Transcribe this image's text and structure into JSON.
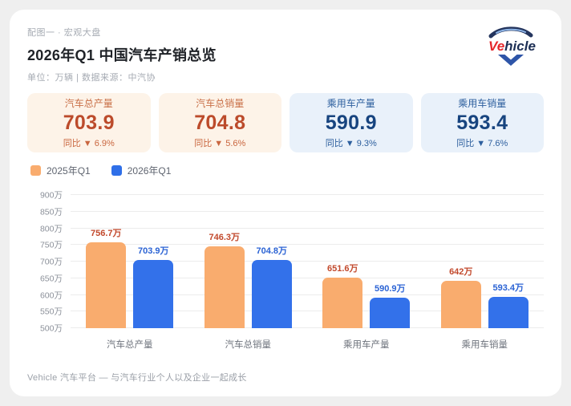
{
  "page": {
    "eyebrow": "配图一 · 宏观大盘",
    "title": "2026年Q1 中国汽车产销总览",
    "subtitle": "单位：万辆 | 数据来源：中汽协",
    "footer": "Vehicle 汽车平台 — 与汽车行业个人以及企业一起成长"
  },
  "logo": {
    "text_red": "Ve",
    "text_dark": "hicle"
  },
  "stat_cards": [
    {
      "label": "汽车总产量",
      "value": "703.9",
      "change": "同比 ▼ 6.9%",
      "theme": "orange"
    },
    {
      "label": "汽车总销量",
      "value": "704.8",
      "change": "同比 ▼ 5.6%",
      "theme": "orange"
    },
    {
      "label": "乘用车产量",
      "value": "590.9",
      "change": "同比 ▼ 9.3%",
      "theme": "blue"
    },
    {
      "label": "乘用车销量",
      "value": "593.4",
      "change": "同比 ▼ 7.6%",
      "theme": "blue"
    }
  ],
  "legend": [
    {
      "label": "2025年Q1",
      "color": "#f9ac6e"
    },
    {
      "label": "2026年Q1",
      "color": "#2f6fe8"
    }
  ],
  "chart_data": {
    "type": "bar",
    "title": "2026年Q1 中国汽车产销总览",
    "categories": [
      "汽车总产量",
      "汽车总销量",
      "乘用车产量",
      "乘用车销量"
    ],
    "series": [
      {
        "name": "2025年Q1",
        "values": [
          756.7,
          746.3,
          651.6,
          642
        ],
        "labels": [
          "756.7万",
          "746.3万",
          "651.6万",
          "642万"
        ],
        "color": "#f9ac6e",
        "label_color": "#c2492c"
      },
      {
        "name": "2026年Q1",
        "values": [
          703.9,
          704.8,
          590.9,
          593.4
        ],
        "labels": [
          "703.9万",
          "704.8万",
          "590.9万",
          "593.4万"
        ],
        "color": "#3371ea",
        "label_color": "#2b63d4"
      }
    ],
    "xlabel": "",
    "ylabel": "",
    "ylim": [
      500,
      900
    ],
    "ytick_step": 50,
    "ytick_suffix": "万",
    "grid": true,
    "legend_position": "top-left"
  }
}
